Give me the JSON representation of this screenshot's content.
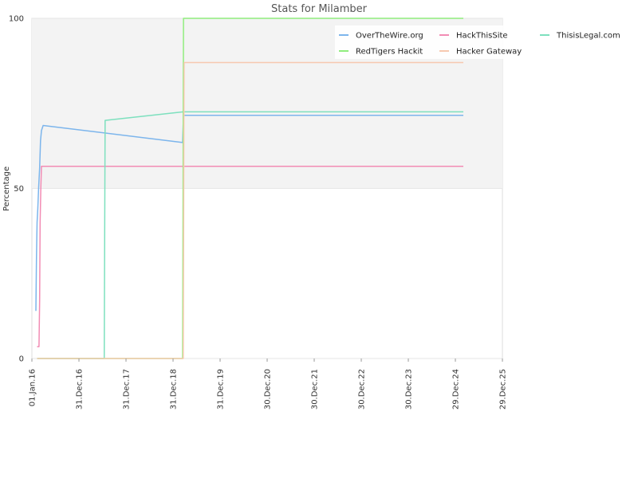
{
  "chart_data": {
    "type": "line",
    "title": "Stats for Milamber",
    "ylabel": "Percentage",
    "xlabel": "",
    "ylim": [
      0,
      100
    ],
    "y_ticks": [
      0,
      50,
      100
    ],
    "xlim": [
      "2016-01-01",
      "2025-12-29"
    ],
    "x_ticks": [
      {
        "date": "2016-01-01",
        "label": "01.Jan.16"
      },
      {
        "date": "2016-12-31",
        "label": "31.Dec.16"
      },
      {
        "date": "2017-12-31",
        "label": "31.Dec.17"
      },
      {
        "date": "2018-12-31",
        "label": "31.Dec.18"
      },
      {
        "date": "2019-12-31",
        "label": "31.Dec.19"
      },
      {
        "date": "2020-12-30",
        "label": "30.Dec.20"
      },
      {
        "date": "2021-12-30",
        "label": "30.Dec.21"
      },
      {
        "date": "2022-12-30",
        "label": "30.Dec.22"
      },
      {
        "date": "2023-12-30",
        "label": "30.Dec.23"
      },
      {
        "date": "2024-12-29",
        "label": "29.Dec.24"
      },
      {
        "date": "2025-12-29",
        "label": "29.Dec.25"
      }
    ],
    "grid": "horizontal",
    "legend_position": "top-right",
    "series": [
      {
        "name": "OverTheWire.org",
        "color": "#7cb5ec",
        "points": [
          [
            "2016-02-01",
            14
          ],
          [
            "2016-02-05",
            29
          ],
          [
            "2016-02-10",
            40
          ],
          [
            "2016-02-16",
            44
          ],
          [
            "2016-02-22",
            50
          ],
          [
            "2016-03-01",
            56
          ],
          [
            "2016-03-08",
            64
          ],
          [
            "2016-03-15",
            67
          ],
          [
            "2016-03-28",
            68.5
          ],
          [
            "2019-03-15",
            63.5
          ],
          [
            "2019-03-22",
            71.5
          ],
          [
            "2025-03-01",
            71.5
          ]
        ]
      },
      {
        "name": "HackThisSite",
        "color": "#f28cb4",
        "points": [
          [
            "2016-02-10",
            3.5
          ],
          [
            "2016-02-25",
            3.5
          ],
          [
            "2016-03-01",
            17
          ],
          [
            "2016-03-05",
            40
          ],
          [
            "2016-03-10",
            50
          ],
          [
            "2016-03-15",
            56.5
          ],
          [
            "2025-03-01",
            56.5
          ]
        ]
      },
      {
        "name": "ThisisLegal.com",
        "color": "#7de0be",
        "points": [
          [
            "2016-02-10",
            0
          ],
          [
            "2017-07-15",
            0
          ],
          [
            "2017-07-22",
            70
          ],
          [
            "2019-03-20",
            72.5
          ],
          [
            "2025-03-01",
            72.5
          ]
        ]
      },
      {
        "name": "RedTigers Hackit",
        "color": "#90ed7d",
        "points": [
          [
            "2016-02-10",
            0
          ],
          [
            "2019-03-15",
            0
          ],
          [
            "2019-03-22",
            100
          ],
          [
            "2025-03-01",
            100
          ]
        ]
      },
      {
        "name": "Hacker Gateway",
        "color": "#f7c9b0",
        "points": [
          [
            "2016-02-10",
            0
          ],
          [
            "2019-03-20",
            0
          ],
          [
            "2019-03-27",
            87
          ],
          [
            "2025-03-01",
            87
          ]
        ]
      }
    ]
  }
}
